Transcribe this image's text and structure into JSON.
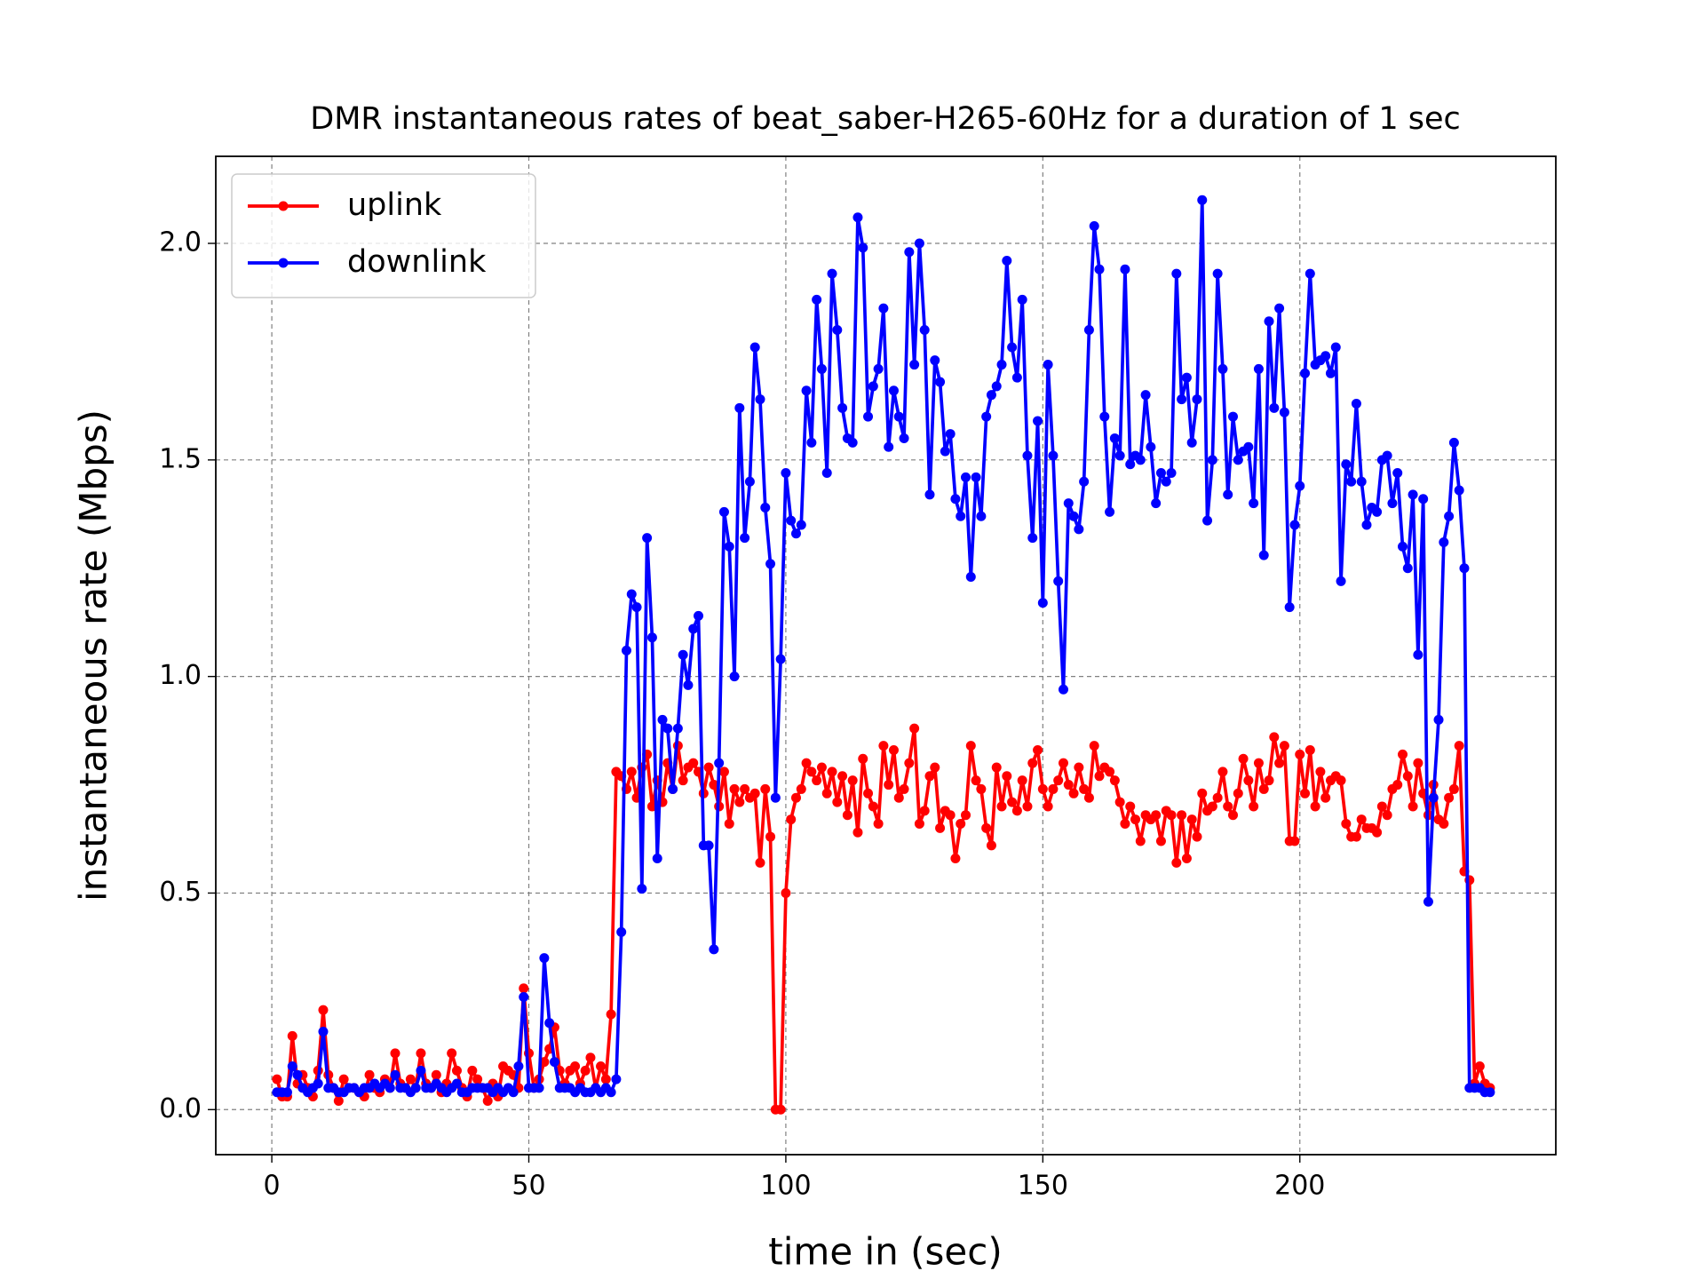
{
  "chart_data": {
    "type": "line",
    "title": "DMR instantaneous rates of beat_saber-H265-60Hz for a duration of 1 sec",
    "xlabel": "time in (sec)",
    "ylabel": "instantaneous rate (Mbps)",
    "xlim": [
      -10.9,
      249.8
    ],
    "ylim": [
      -0.104,
      2.201
    ],
    "xticks": [
      0,
      50,
      100,
      150,
      200
    ],
    "yticks": [
      {
        "value": 0,
        "label": "0.0"
      },
      0.5,
      {
        "value": 1,
        "label": "1.0"
      },
      1.5,
      {
        "value": 2,
        "label": "2.0"
      }
    ],
    "grid": true,
    "legend": "upper left",
    "x": [
      1,
      2,
      3,
      4,
      5,
      6,
      7,
      8,
      9,
      10,
      11,
      12,
      13,
      14,
      15,
      16,
      17,
      18,
      19,
      20,
      21,
      22,
      23,
      24,
      25,
      26,
      27,
      28,
      29,
      30,
      31,
      32,
      33,
      34,
      35,
      36,
      37,
      38,
      39,
      40,
      41,
      42,
      43,
      44,
      45,
      46,
      47,
      48,
      49,
      50,
      51,
      52,
      53,
      54,
      55,
      56,
      57,
      58,
      59,
      60,
      61,
      62,
      63,
      64,
      65,
      66,
      67,
      68,
      69,
      70,
      71,
      72,
      73,
      74,
      75,
      76,
      77,
      78,
      79,
      80,
      81,
      82,
      83,
      84,
      85,
      86,
      87,
      88,
      89,
      90,
      91,
      92,
      93,
      94,
      95,
      96,
      97,
      98,
      99,
      100,
      101,
      102,
      103,
      104,
      105,
      106,
      107,
      108,
      109,
      110,
      111,
      112,
      113,
      114,
      115,
      116,
      117,
      118,
      119,
      120,
      121,
      122,
      123,
      124,
      125,
      126,
      127,
      128,
      129,
      130,
      131,
      132,
      133,
      134,
      135,
      136,
      137,
      138,
      139,
      140,
      141,
      142,
      143,
      144,
      145,
      146,
      147,
      148,
      149,
      150,
      151,
      152,
      153,
      154,
      155,
      156,
      157,
      158,
      159,
      160,
      161,
      162,
      163,
      164,
      165,
      166,
      167,
      168,
      169,
      170,
      171,
      172,
      173,
      174,
      175,
      176,
      177,
      178,
      179,
      180,
      181,
      182,
      183,
      184,
      185,
      186,
      187,
      188,
      189,
      190,
      191,
      192,
      193,
      194,
      195,
      196,
      197,
      198,
      199,
      200,
      201,
      202,
      203,
      204,
      205,
      206,
      207,
      208,
      209,
      210,
      211,
      212,
      213,
      214,
      215,
      216,
      217,
      218,
      219,
      220,
      221,
      222,
      223,
      224,
      225,
      226,
      227,
      228,
      229,
      230,
      231,
      232,
      233,
      234,
      235,
      236,
      237
    ],
    "series": [
      {
        "name": "uplink",
        "color": "#ff0000",
        "values": [
          0.07,
          0.03,
          0.03,
          0.17,
          0.06,
          0.08,
          0.05,
          0.03,
          0.09,
          0.23,
          0.08,
          0.05,
          0.02,
          0.07,
          0.05,
          0.05,
          0.04,
          0.03,
          0.08,
          0.05,
          0.04,
          0.07,
          0.05,
          0.13,
          0.06,
          0.05,
          0.07,
          0.05,
          0.13,
          0.06,
          0.05,
          0.08,
          0.04,
          0.06,
          0.13,
          0.09,
          0.05,
          0.03,
          0.09,
          0.07,
          0.05,
          0.02,
          0.06,
          0.03,
          0.1,
          0.09,
          0.08,
          0.05,
          0.28,
          0.13,
          0.05,
          0.07,
          0.11,
          0.14,
          0.19,
          0.09,
          0.06,
          0.09,
          0.1,
          0.06,
          0.09,
          0.12,
          0.05,
          0.1,
          0.07,
          0.22,
          0.78,
          0.77,
          0.74,
          0.78,
          0.72,
          0.79,
          0.82,
          0.7,
          0.76,
          0.71,
          0.8,
          0.74,
          0.84,
          0.76,
          0.79,
          0.8,
          0.78,
          0.73,
          0.79,
          0.75,
          0.7,
          0.78,
          0.66,
          0.74,
          0.71,
          0.74,
          0.72,
          0.73,
          0.57,
          0.74,
          0.63,
          0.0,
          0.0,
          0.5,
          0.67,
          0.72,
          0.74,
          0.8,
          0.78,
          0.76,
          0.79,
          0.73,
          0.78,
          0.71,
          0.77,
          0.68,
          0.76,
          0.64,
          0.81,
          0.73,
          0.7,
          0.66,
          0.84,
          0.75,
          0.83,
          0.72,
          0.74,
          0.8,
          0.88,
          0.66,
          0.69,
          0.77,
          0.79,
          0.65,
          0.69,
          0.68,
          0.58,
          0.66,
          0.68,
          0.84,
          0.76,
          0.74,
          0.65,
          0.61,
          0.79,
          0.7,
          0.77,
          0.71,
          0.69,
          0.76,
          0.7,
          0.8,
          0.83,
          0.74,
          0.7,
          0.74,
          0.76,
          0.8,
          0.75,
          0.73,
          0.79,
          0.74,
          0.72,
          0.84,
          0.77,
          0.79,
          0.78,
          0.76,
          0.71,
          0.66,
          0.7,
          0.67,
          0.62,
          0.68,
          0.67,
          0.68,
          0.62,
          0.69,
          0.68,
          0.57,
          0.68,
          0.58,
          0.67,
          0.63,
          0.73,
          0.69,
          0.7,
          0.72,
          0.78,
          0.7,
          0.68,
          0.73,
          0.81,
          0.76,
          0.7,
          0.8,
          0.74,
          0.76,
          0.86,
          0.8,
          0.84,
          0.62,
          0.62,
          0.82,
          0.73,
          0.83,
          0.7,
          0.78,
          0.72,
          0.76,
          0.77,
          0.76,
          0.66,
          0.63,
          0.63,
          0.67,
          0.65,
          0.65,
          0.64,
          0.7,
          0.68,
          0.74,
          0.75,
          0.82,
          0.77,
          0.7,
          0.8,
          0.73,
          0.68,
          0.75,
          0.67,
          0.66,
          0.72,
          0.74,
          0.84,
          0.55,
          0.53,
          0.06,
          0.1,
          0.06,
          0.05
        ]
      },
      {
        "name": "downlink",
        "color": "#0000ff",
        "values": [
          0.04,
          0.04,
          0.04,
          0.1,
          0.08,
          0.05,
          0.04,
          0.05,
          0.06,
          0.18,
          0.05,
          0.05,
          0.04,
          0.04,
          0.05,
          0.05,
          0.04,
          0.05,
          0.05,
          0.06,
          0.05,
          0.06,
          0.05,
          0.08,
          0.05,
          0.05,
          0.04,
          0.05,
          0.09,
          0.05,
          0.05,
          0.06,
          0.05,
          0.04,
          0.05,
          0.06,
          0.04,
          0.04,
          0.05,
          0.05,
          0.05,
          0.05,
          0.04,
          0.05,
          0.04,
          0.05,
          0.04,
          0.1,
          0.26,
          0.05,
          0.05,
          0.05,
          0.35,
          0.2,
          0.11,
          0.05,
          0.05,
          0.05,
          0.04,
          0.05,
          0.04,
          0.04,
          0.05,
          0.04,
          0.05,
          0.04,
          0.07,
          0.41,
          1.06,
          1.19,
          1.16,
          0.51,
          1.32,
          1.09,
          0.58,
          0.9,
          0.88,
          0.74,
          0.88,
          1.05,
          0.98,
          1.11,
          1.14,
          0.61,
          0.61,
          0.37,
          0.8,
          1.38,
          1.3,
          1.0,
          1.62,
          1.32,
          1.45,
          1.76,
          1.64,
          1.39,
          1.26,
          0.72,
          1.04,
          1.47,
          1.36,
          1.33,
          1.35,
          1.66,
          1.54,
          1.87,
          1.71,
          1.47,
          1.93,
          1.8,
          1.62,
          1.55,
          1.54,
          2.06,
          1.99,
          1.6,
          1.67,
          1.71,
          1.85,
          1.53,
          1.66,
          1.6,
          1.55,
          1.98,
          1.72,
          2.0,
          1.8,
          1.42,
          1.73,
          1.68,
          1.52,
          1.56,
          1.41,
          1.37,
          1.46,
          1.23,
          1.46,
          1.37,
          1.6,
          1.65,
          1.67,
          1.72,
          1.96,
          1.76,
          1.69,
          1.87,
          1.51,
          1.32,
          1.59,
          1.17,
          1.72,
          1.51,
          1.22,
          0.97,
          1.4,
          1.37,
          1.34,
          1.45,
          1.8,
          2.04,
          1.94,
          1.6,
          1.38,
          1.55,
          1.51,
          1.94,
          1.49,
          1.51,
          1.5,
          1.65,
          1.53,
          1.4,
          1.47,
          1.45,
          1.47,
          1.93,
          1.64,
          1.69,
          1.54,
          1.64,
          2.1,
          1.36,
          1.5,
          1.93,
          1.71,
          1.42,
          1.6,
          1.5,
          1.52,
          1.53,
          1.4,
          1.71,
          1.28,
          1.82,
          1.62,
          1.85,
          1.61,
          1.16,
          1.35,
          1.44,
          1.7,
          1.93,
          1.72,
          1.73,
          1.74,
          1.7,
          1.76,
          1.22,
          1.49,
          1.45,
          1.63,
          1.45,
          1.35,
          1.39,
          1.38,
          1.5,
          1.51,
          1.4,
          1.47,
          1.3,
          1.25,
          1.42,
          1.05,
          1.41,
          0.48,
          0.72,
          0.9,
          1.31,
          1.37,
          1.54,
          1.43,
          1.25,
          0.05,
          0.05,
          0.05,
          0.04,
          0.04
        ]
      }
    ]
  }
}
